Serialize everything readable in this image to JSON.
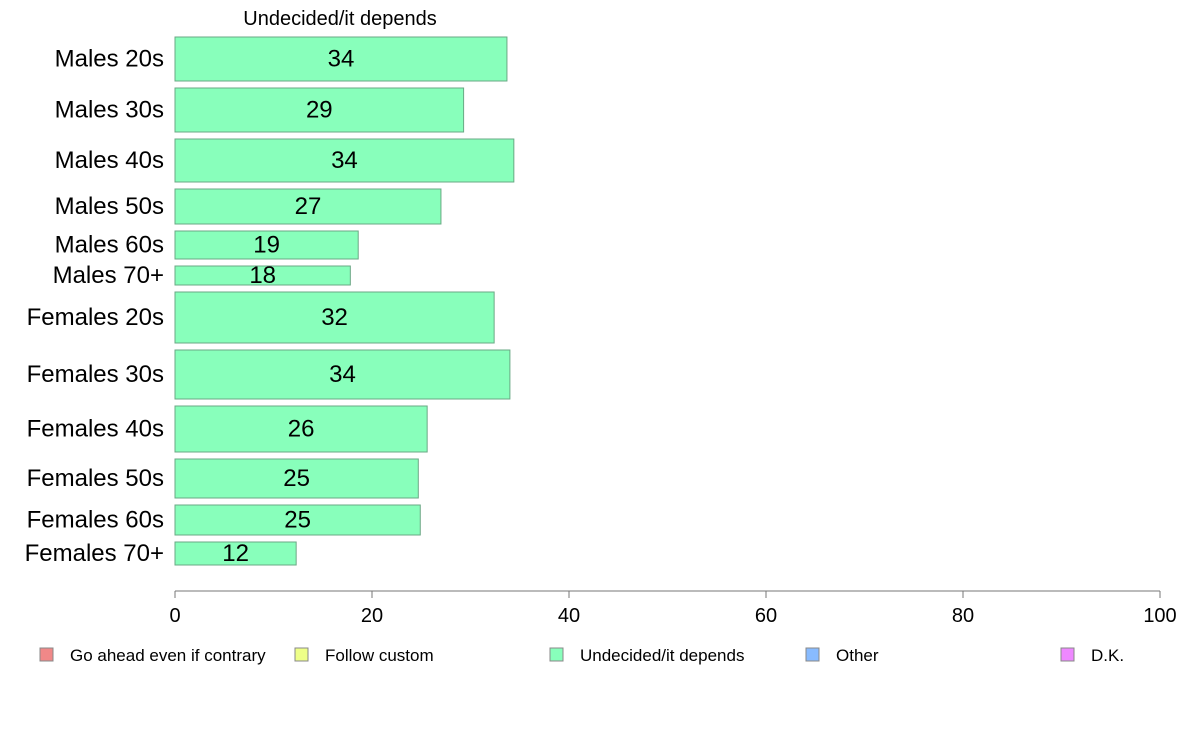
{
  "chart_data": {
    "type": "bar",
    "orientation": "horizontal",
    "title": "Undecided/it depends",
    "categories": [
      "Males 20s",
      "Males 30s",
      "Males 40s",
      "Males 50s",
      "Males 60s",
      "Males 70+",
      "Females 20s",
      "Females 30s",
      "Females 40s",
      "Females 50s",
      "Females 60s",
      "Females 70+"
    ],
    "values": [
      34,
      29,
      34,
      27,
      19,
      18,
      32,
      34,
      26,
      25,
      25,
      12
    ],
    "bar_values": [
      33.7,
      29.3,
      34.4,
      27.0,
      18.6,
      17.8,
      32.4,
      34.0,
      25.6,
      24.7,
      24.9,
      12.3
    ],
    "relative_bar_heights": [
      44,
      44,
      43,
      35,
      28,
      19,
      51,
      49,
      46,
      39,
      30,
      23
    ],
    "bar_color": "#88ffbb",
    "xlim": [
      0,
      100
    ],
    "xticks": [
      0,
      20,
      40,
      60,
      80,
      100
    ],
    "grid": false,
    "legend_position": "bottom",
    "legend": [
      {
        "label": "Go ahead even if contrary",
        "color": "#f08888"
      },
      {
        "label": "Follow custom",
        "color": "#eeff88"
      },
      {
        "label": "Undecided/it depends",
        "color": "#88ffbb"
      },
      {
        "label": "Other",
        "color": "#88bbff"
      },
      {
        "label": "D.K.",
        "color": "#ee88ff"
      }
    ]
  }
}
